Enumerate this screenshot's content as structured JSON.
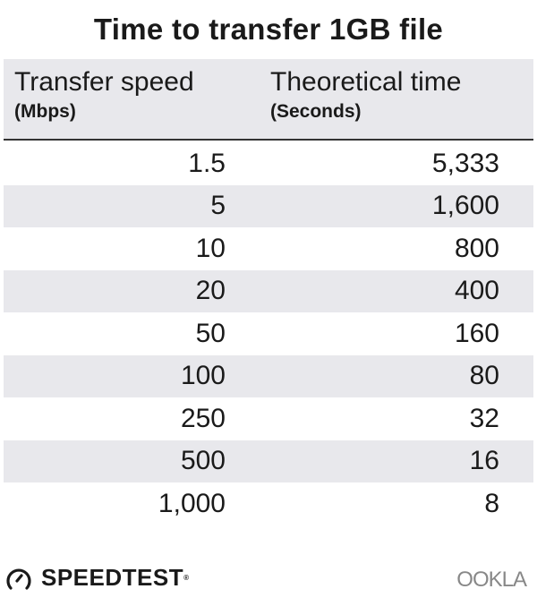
{
  "chart_data": {
    "type": "table",
    "title": "Time to transfer 1GB file",
    "columns": [
      {
        "label": "Transfer speed",
        "unit": "(Mbps)"
      },
      {
        "label": "Theoretical time",
        "unit": "(Seconds)"
      }
    ],
    "rows": [
      [
        "1.5",
        "5,333"
      ],
      [
        "5",
        "1,600"
      ],
      [
        "10",
        "800"
      ],
      [
        "20",
        "400"
      ],
      [
        "50",
        "160"
      ],
      [
        "100",
        "80"
      ],
      [
        "250",
        "32"
      ],
      [
        "500",
        "16"
      ],
      [
        "1,000",
        "8"
      ]
    ],
    "row_stripe_color": "#e8e8ec"
  },
  "footer": {
    "left_logo": "SPEEDTEST",
    "right_logo": "OOKLA"
  }
}
